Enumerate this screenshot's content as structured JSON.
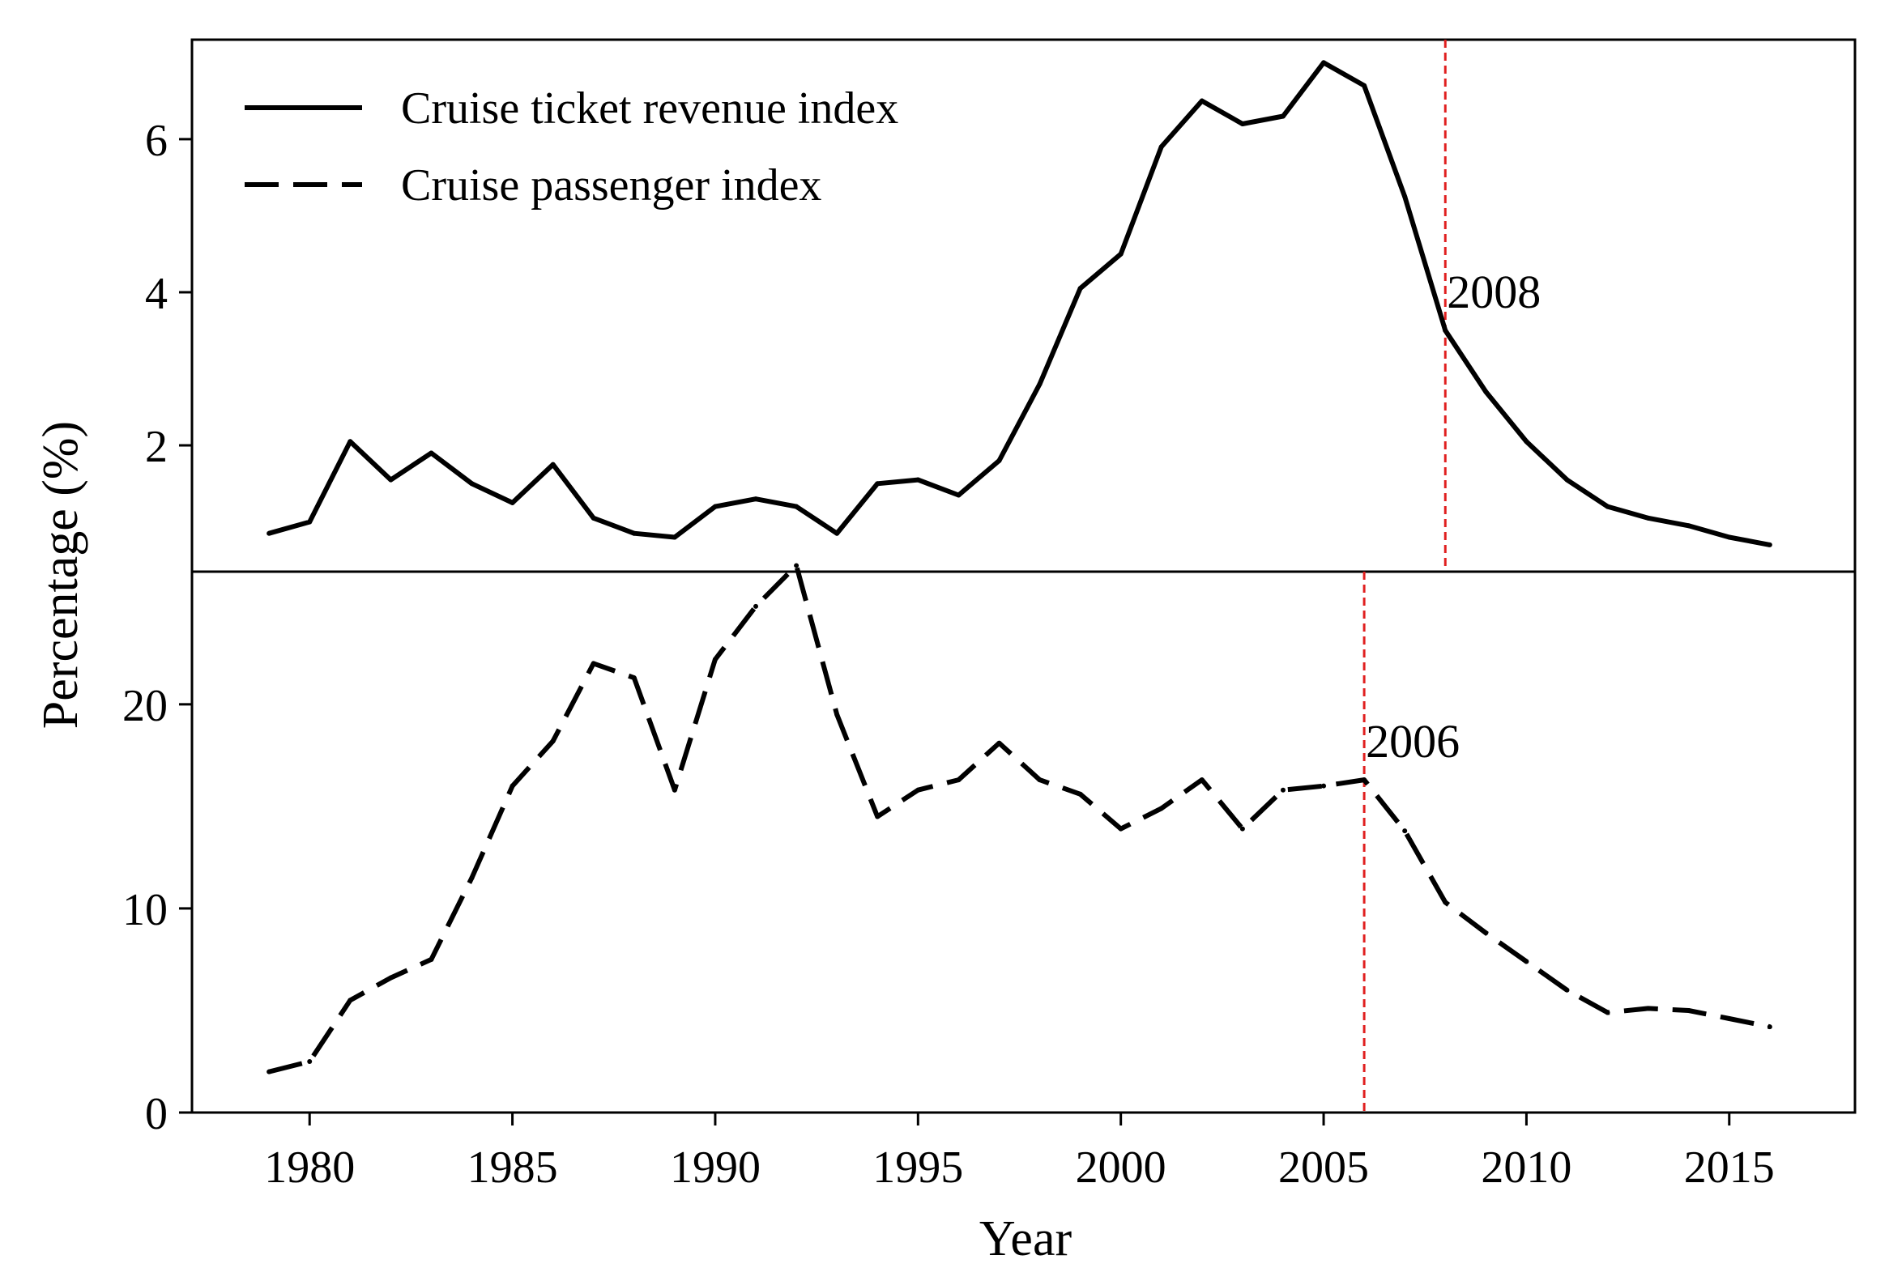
{
  "chart_data": [
    {
      "type": "line",
      "panel": "top",
      "legend_position": "top-left",
      "x": [
        1979,
        1980,
        1981,
        1982,
        1983,
        1984,
        1985,
        1986,
        1987,
        1988,
        1989,
        1990,
        1991,
        1992,
        1993,
        1994,
        1995,
        1996,
        1997,
        1998,
        1999,
        2000,
        2001,
        2002,
        2003,
        2004,
        2005,
        2006,
        2007,
        2008,
        2009,
        2010,
        2011,
        2012,
        2013,
        2014,
        2015,
        2016
      ],
      "series": [
        {
          "name": "Cruise ticket revenue index",
          "style": "solid",
          "values": [
            0.85,
            1.0,
            2.05,
            1.55,
            1.9,
            1.5,
            1.25,
            1.75,
            1.05,
            0.85,
            0.8,
            1.2,
            1.3,
            1.2,
            0.85,
            1.5,
            1.55,
            1.35,
            1.8,
            2.8,
            4.05,
            4.5,
            5.9,
            6.5,
            6.2,
            6.3,
            7.0,
            6.7,
            5.25,
            3.5,
            2.7,
            2.05,
            1.55,
            1.2,
            1.05,
            0.95,
            0.8,
            0.7
          ]
        }
      ],
      "legend": [
        "Cruise ticket revenue index",
        "Cruise passenger index"
      ],
      "ylim": [
        0.35,
        7.3
      ],
      "yticks": [
        2,
        4,
        6
      ],
      "marker_line": {
        "x": 2008,
        "label": "2008",
        "color": "#e02020"
      }
    },
    {
      "type": "line",
      "panel": "bottom",
      "x": [
        1979,
        1980,
        1981,
        1982,
        1983,
        1984,
        1985,
        1986,
        1987,
        1988,
        1989,
        1990,
        1991,
        1992,
        1993,
        1994,
        1995,
        1996,
        1997,
        1998,
        1999,
        2000,
        2001,
        2002,
        2003,
        2004,
        2005,
        2006,
        2007,
        2008,
        2009,
        2010,
        2011,
        2012,
        2013,
        2014,
        2015,
        2016
      ],
      "series": [
        {
          "name": "Cruise passenger index",
          "style": "dashed",
          "values": [
            2.0,
            2.5,
            5.5,
            6.6,
            7.5,
            11.5,
            16.0,
            18.2,
            22.0,
            21.3,
            15.8,
            22.2,
            24.8,
            26.8,
            19.5,
            14.5,
            15.8,
            16.3,
            18.1,
            16.3,
            15.6,
            13.9,
            14.9,
            16.3,
            13.9,
            15.8,
            16.0,
            16.3,
            13.8,
            10.3,
            8.8,
            7.4,
            6.0,
            4.9,
            5.1,
            5.0,
            4.6,
            4.2
          ]
        }
      ],
      "ylim": [
        0,
        26.5
      ],
      "yticks": [
        0,
        10,
        20
      ],
      "xticks": [
        1980,
        1985,
        1990,
        1995,
        2000,
        2005,
        2010,
        2015
      ],
      "xlim": [
        1977.1,
        2018.1
      ],
      "marker_line": {
        "x": 2006,
        "label": "2006",
        "color": "#e02020"
      }
    }
  ],
  "xlabel": "Year",
  "ylabel": "Percentage (%)",
  "line_color": "#000000",
  "reference_color": "#e02020"
}
